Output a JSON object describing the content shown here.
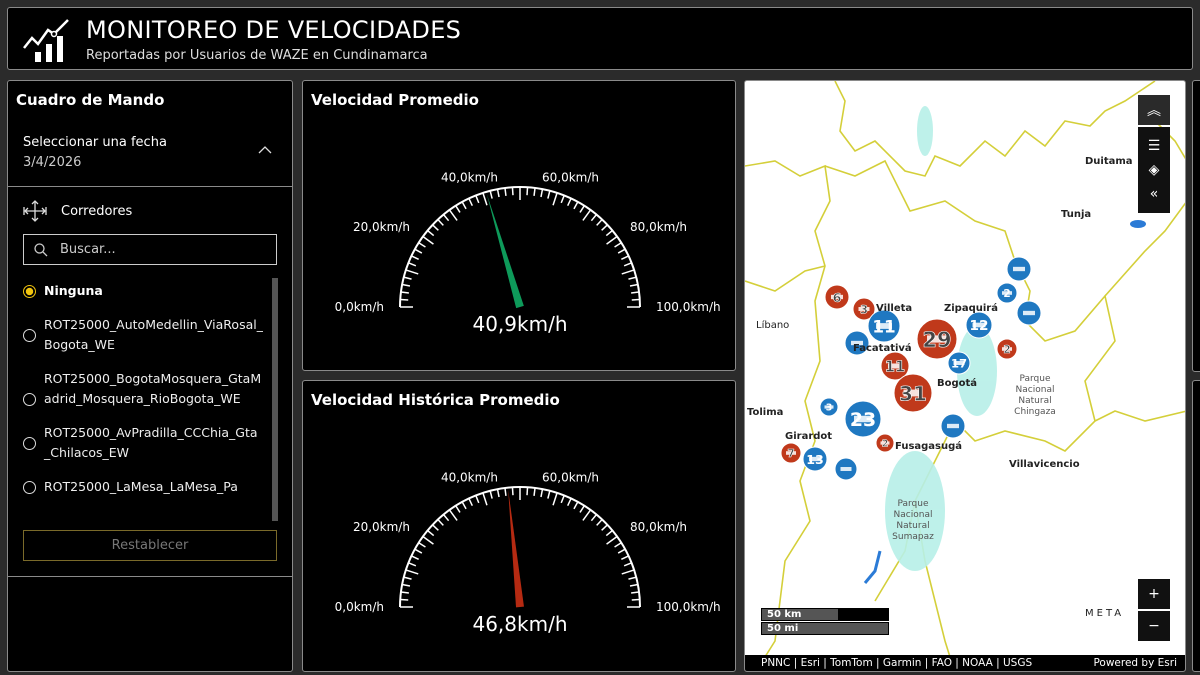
{
  "header": {
    "title": "MONITOREO DE VELOCIDADES",
    "subtitle": "Reportadas por Usuarios de WAZE en Cundinamarca",
    "logo_icon": "chart-trend-icon"
  },
  "left_panel": {
    "title": "Cuadro de Mando",
    "date_label": "Seleccionar una fecha",
    "date_value": "3/4/2026",
    "corridors_label": "Corredores",
    "search_placeholder": "Buscar...",
    "options": [
      {
        "label": "Ninguna",
        "selected": true
      },
      {
        "label": "ROT25000_AutoMedellin_ViaRosal_Bogota_WE",
        "selected": false
      },
      {
        "label": "ROT25000_BogotaMosquera_GtaMadrid_Mosquera_RioBogota_WE",
        "selected": false
      },
      {
        "label": "ROT25000_AvPradilla_CCChia_Gta_Chilacos_EW",
        "selected": false
      },
      {
        "label": "ROT25000_LaMesa_LaMesa_Pa",
        "selected": false
      }
    ],
    "reset_label": "Restablecer",
    "accent": "#f1c40f"
  },
  "gauges": [
    {
      "title": "Velocidad Promedio",
      "value": 40.9,
      "value_label": "40,9km/h",
      "min": 0,
      "max": 100,
      "needle_color": "#0e9a5a",
      "ticks": [
        "0,0km/h",
        "20,0km/h",
        "40,0km/h",
        "60,0km/h",
        "80,0km/h",
        "100,0km/h"
      ]
    },
    {
      "title": "Velocidad Histórica Promedio",
      "value": 46.8,
      "value_label": "46,8km/h",
      "min": 0,
      "max": 100,
      "needle_color": "#b52a12",
      "ticks": [
        "0,0km/h",
        "20,0km/h",
        "40,0km/h",
        "60,0km/h",
        "80,0km/h",
        "100,0km/h"
      ]
    }
  ],
  "map": {
    "places": [
      "Duitama",
      "Tunja",
      "Zipaquirá",
      "Villeta",
      "Líbano",
      "Facatativá",
      "Bogotá",
      "Tolima",
      "Girardot",
      "Fusagasugá",
      "Villavicencio",
      "Parque Nacional Natural Chingaza",
      "Parque Nacional Natural Sumapaz",
      "META"
    ],
    "place_labels": {
      "dui": "Dui",
      "tunja": "Tunja",
      "zipa": "Zipaquirá",
      "villeta": "lleta",
      "libano": "Líbano",
      "faca": "Facatati",
      "bogota": "Bogotá",
      "tolima": "ima",
      "girardot": "Girardot",
      "fusa": "Fusagasugá",
      "villavo": "Villavicencio",
      "chingaza": [
        "Parque",
        "Nacional",
        "Natural",
        "Chingaza"
      ],
      "sumapaz": [
        "Parque",
        "Nacional",
        "Natural",
        "Sumapaz"
      ],
      "meta": "MET"
    },
    "clusters": [
      {
        "type": "red",
        "count": "6"
      },
      {
        "type": "red",
        "count": "3"
      },
      {
        "type": "blue",
        "count": "11"
      },
      {
        "type": "blue",
        "count": ""
      },
      {
        "type": "blue",
        "count": "12"
      },
      {
        "type": "red",
        "count": "29"
      },
      {
        "type": "blue",
        "count": "17"
      },
      {
        "type": "red",
        "count": "11"
      },
      {
        "type": "red",
        "count": "31"
      },
      {
        "type": "blue",
        "count": "23"
      },
      {
        "type": "red",
        "count": "2"
      },
      {
        "type": "blue",
        "count": "3"
      },
      {
        "type": "blue",
        "count": "13"
      },
      {
        "type": "red",
        "count": "7"
      },
      {
        "type": "blue",
        "count": ""
      },
      {
        "type": "blue",
        "count": "2"
      },
      {
        "type": "blue",
        "count": ""
      },
      {
        "type": "blue",
        "count": ""
      },
      {
        "type": "red",
        "count": "2"
      },
      {
        "type": "blue",
        "count": ""
      }
    ],
    "scale_km": "50 km",
    "scale_mi": "50 mi",
    "attribution": "PNNC | Esri | TomTom | Garmin | FAO | NOAA | USGS",
    "powered_by": "Powered by Esri",
    "zoom_in": "+",
    "zoom_out": "−",
    "colors": {
      "red": "#c0391b",
      "blue": "#1f78c1",
      "boundary": "#d4cf3a",
      "park": "#7fe3d6"
    }
  }
}
